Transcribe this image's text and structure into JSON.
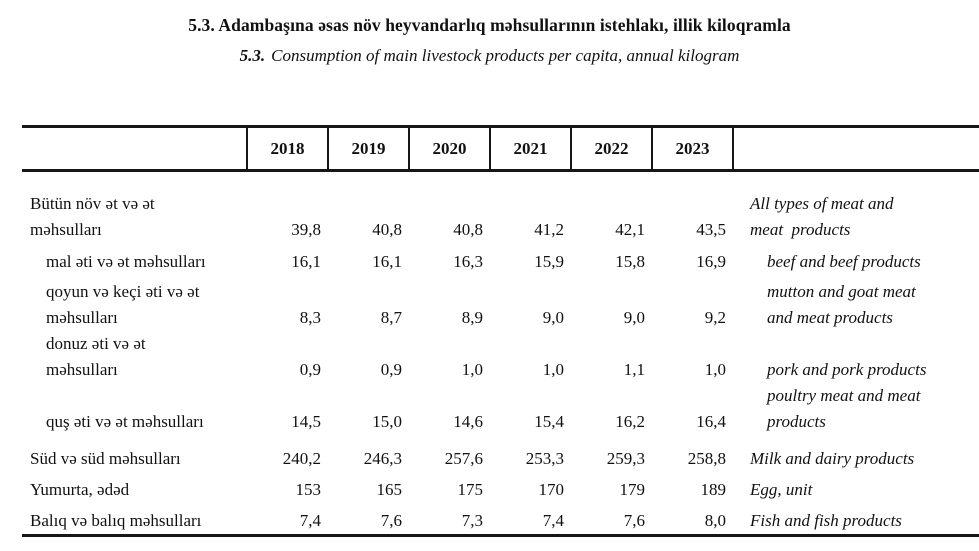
{
  "page": {
    "title_az": "5.3. Adambaşına əsas növ heyvandarlıq məhsullarının istehlakı, illik kiloqramla",
    "title_en_prefix": "5.3.",
    "title_en": "Consumption of main livestock products per capita, annual kilogram"
  },
  "table": {
    "years": [
      "2018",
      "2019",
      "2020",
      "2021",
      "2022",
      "2023"
    ],
    "rows": [
      {
        "az_lines": [
          "Bütün növ ət və ət",
          "məhsulları"
        ],
        "values": [
          "39,8",
          "40,8",
          "40,8",
          "41,2",
          "42,1",
          "43,5"
        ],
        "en_lines": [
          "All types of meat and",
          "meat  products"
        ],
        "indent": false
      },
      {
        "az_lines": [
          "mal əti və ət məhsulları"
        ],
        "values": [
          "16,1",
          "16,1",
          "16,3",
          "15,9",
          "15,8",
          "16,9"
        ],
        "en_lines": [
          "beef and beef products"
        ],
        "indent": true
      },
      {
        "az_lines": [
          "qoyun və keçi əti və ət",
          "məhsulları"
        ],
        "values": [
          "8,3",
          "8,7",
          "8,9",
          "9,0",
          "9,0",
          "9,2"
        ],
        "en_lines": [
          "mutton and goat meat",
          "and meat products"
        ],
        "indent": true
      },
      {
        "az_lines": [
          "donuz əti və ət",
          "məhsulları"
        ],
        "values": [
          "0,9",
          "0,9",
          "1,0",
          "1,0",
          "1,1",
          "1,0"
        ],
        "en_lines": [
          "pork and pork products"
        ],
        "indent": true
      },
      {
        "az_lines": [
          "quş əti və ət məhsulları"
        ],
        "values": [
          "14,5",
          "15,0",
          "14,6",
          "15,4",
          "16,2",
          "16,4"
        ],
        "en_lines": [
          "poultry meat and meat",
          "products"
        ],
        "indent": true
      },
      {
        "az_lines": [
          "Süd və süd məhsulları"
        ],
        "values": [
          "240,2",
          "246,3",
          "257,6",
          "253,3",
          "259,3",
          "258,8"
        ],
        "en_lines": [
          "Milk and dairy products"
        ],
        "indent": false
      },
      {
        "az_lines": [
          "Yumurta, ədəd"
        ],
        "values": [
          "153",
          "165",
          "175",
          "170",
          "179",
          "189"
        ],
        "en_lines": [
          "Egg, unit"
        ],
        "indent": false
      },
      {
        "az_lines": [
          "Balıq və balıq məhsulları"
        ],
        "values": [
          "7,4",
          "7,6",
          "7,3",
          "7,4",
          "7,6",
          "8,0"
        ],
        "en_lines": [
          "Fish and fish products"
        ],
        "indent": false
      }
    ]
  }
}
